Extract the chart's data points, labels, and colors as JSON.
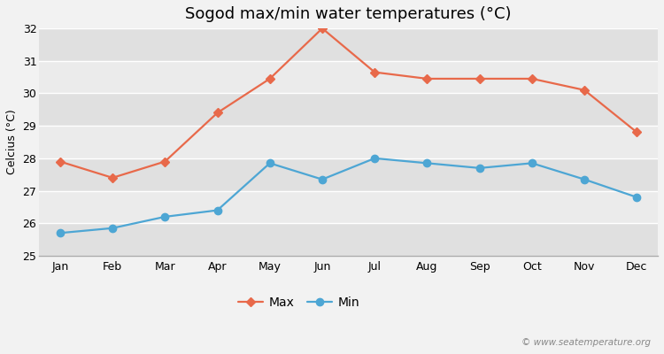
{
  "title": "Sogod max/min water temperatures (°C)",
  "ylabel": "Celcius (°C)",
  "months": [
    "Jan",
    "Feb",
    "Mar",
    "Apr",
    "May",
    "Jun",
    "Jul",
    "Aug",
    "Sep",
    "Oct",
    "Nov",
    "Dec"
  ],
  "max_values": [
    27.9,
    27.4,
    27.9,
    29.4,
    30.45,
    32.0,
    30.65,
    30.45,
    30.45,
    30.45,
    30.1,
    28.8
  ],
  "min_values": [
    25.7,
    25.85,
    26.2,
    26.4,
    27.85,
    27.35,
    28.0,
    27.85,
    27.7,
    27.85,
    27.35,
    26.8
  ],
  "max_color": "#e8694a",
  "min_color": "#4da6d4",
  "bg_color": "#f2f2f2",
  "stripe_light": "#ebebeb",
  "stripe_dark": "#e0e0e0",
  "grid_color": "#ffffff",
  "ylim": [
    25,
    32
  ],
  "yticks": [
    25,
    26,
    27,
    28,
    29,
    30,
    31,
    32
  ],
  "title_fontsize": 13,
  "axis_fontsize": 9,
  "legend_fontsize": 10,
  "watermark": "© www.seatemperature.org"
}
